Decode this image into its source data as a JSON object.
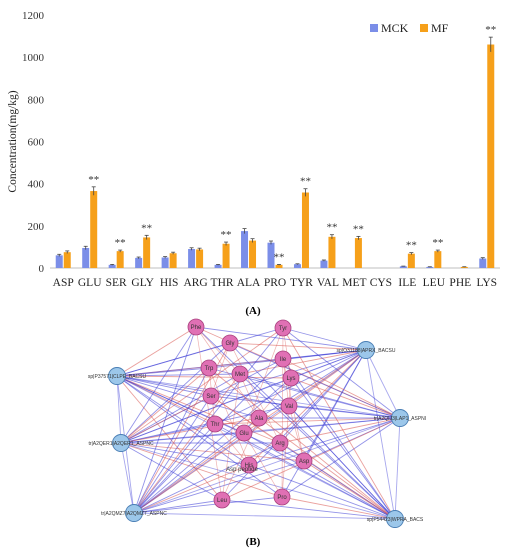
{
  "chart_data": [
    {
      "type": "bar",
      "ylabel": "Concentration(mg/kg)",
      "ylim": [
        0,
        1200
      ],
      "yticks": [
        0,
        200,
        400,
        600,
        800,
        1000,
        1200
      ],
      "categories": [
        "ASP",
        "GLU",
        "SER",
        "GLY",
        "HIS",
        "ARG",
        "THR",
        "ALA",
        "PRO",
        "TYR",
        "VAL",
        "MET",
        "CYS",
        "ILE",
        "LEU",
        "PHE",
        "LYS"
      ],
      "series": [
        {
          "name": "MCK",
          "color": "#7b8ee8",
          "values": [
            60,
            95,
            15,
            48,
            50,
            90,
            15,
            175,
            120,
            18,
            35,
            0,
            0,
            8,
            5,
            0,
            45
          ],
          "errors": [
            5,
            8,
            2,
            4,
            4,
            6,
            2,
            12,
            8,
            2,
            3,
            0,
            0,
            1,
            1,
            0,
            4
          ]
        },
        {
          "name": "MF",
          "color": "#f6a01a",
          "values": [
            75,
            365,
            80,
            145,
            70,
            88,
            115,
            130,
            15,
            358,
            148,
            142,
            0,
            68,
            80,
            5,
            1060
          ],
          "errors": [
            6,
            20,
            5,
            10,
            5,
            6,
            8,
            9,
            2,
            18,
            10,
            8,
            0,
            5,
            5,
            1,
            35
          ]
        }
      ],
      "annotations": [
        "",
        "**",
        "**",
        "**",
        "",
        "",
        "**",
        "",
        "**",
        "**",
        "**",
        "**",
        "",
        "**",
        "**",
        "",
        "**"
      ],
      "legend_position": "top-right",
      "grid": false
    }
  ],
  "panel_labels": {
    "a": "(A)",
    "b": "(B)"
  },
  "network": {
    "nodes": [
      {
        "label": "Phe",
        "kind": "pink"
      },
      {
        "label": "Tyr",
        "kind": "pink"
      },
      {
        "label": "Gly",
        "kind": "pink"
      },
      {
        "label": "Ile",
        "kind": "pink"
      },
      {
        "label": "Trp",
        "kind": "pink"
      },
      {
        "label": "Met",
        "kind": "pink"
      },
      {
        "label": "Lys",
        "kind": "pink"
      },
      {
        "label": "Ser",
        "kind": "pink"
      },
      {
        "label": "Val",
        "kind": "pink"
      },
      {
        "label": "Thr",
        "kind": "pink"
      },
      {
        "label": "Ala",
        "kind": "pink"
      },
      {
        "label": "Glu",
        "kind": "pink"
      },
      {
        "label": "Arg",
        "kind": "pink"
      },
      {
        "label": "Asp",
        "kind": "pink"
      },
      {
        "label": "His",
        "kind": "pink"
      },
      {
        "label": "Leu",
        "kind": "pink"
      },
      {
        "label": "Pro",
        "kind": "pink"
      },
      {
        "label": "sp|P37571|CLPE_BACSU",
        "kind": "blue"
      },
      {
        "label": "sp|O31188|APRX_BACSU",
        "kind": "blue"
      },
      {
        "label": "tr|A2QER1|A2QER1_ASPNC",
        "kind": "blue"
      },
      {
        "label": "tr|A2QIJ3|LAP1_ASPNI",
        "kind": "blue"
      },
      {
        "label": "tr|A2QMZ7|A2QMZ7_ASPNC",
        "kind": "blue"
      },
      {
        "label": "sp|P54423|WPRA_BACS",
        "kind": "blue"
      }
    ],
    "extra_labels": [
      "Asp peptide"
    ]
  }
}
